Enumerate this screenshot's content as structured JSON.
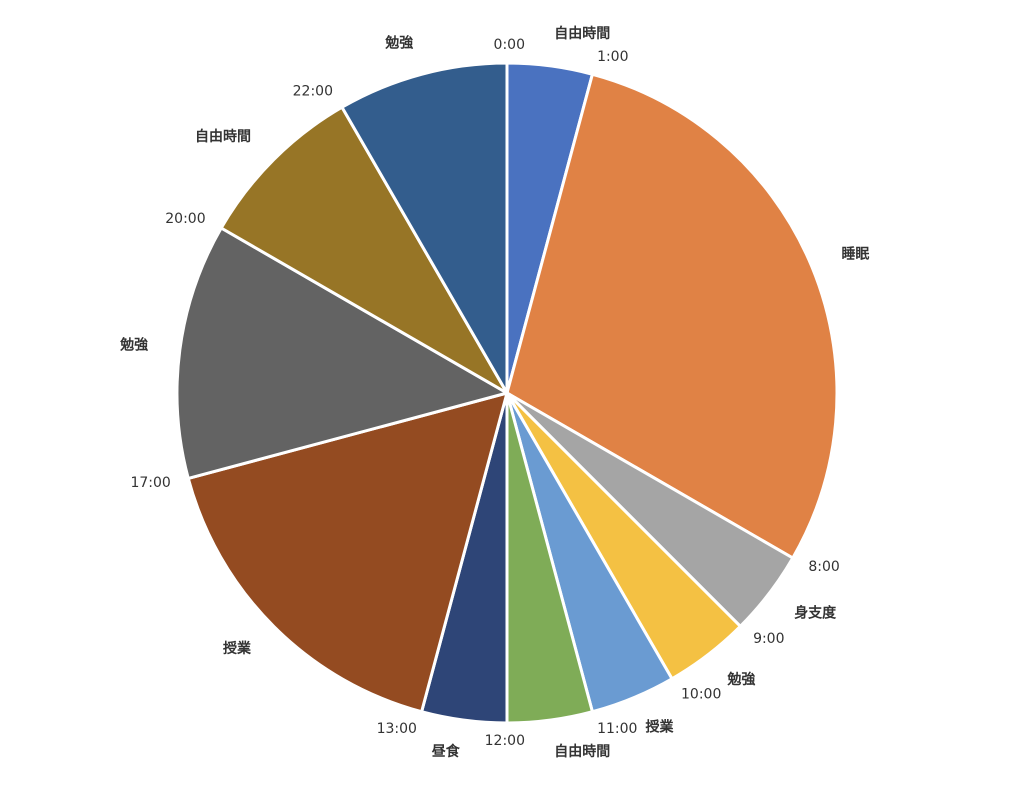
{
  "chart_data": {
    "type": "pie",
    "categories": [
      "自由時間",
      "睡眠",
      "身支度",
      "勉強",
      "授業",
      "自由時間",
      "昼食",
      "授業",
      "勉強",
      "自由時間",
      "勉強"
    ],
    "start_labels": [
      "0:00",
      "1:00",
      "8:00",
      "9:00",
      "10:00",
      "11:00",
      "12:00",
      "13:00",
      "17:00",
      "20:00",
      "22:00"
    ],
    "values": [
      1,
      7,
      1,
      1,
      1,
      1,
      1,
      4,
      3,
      2,
      2
    ],
    "colors": [
      "#4a72c0",
      "#e08245",
      "#a5a5a5",
      "#f4c143",
      "#6a9bd2",
      "#7fac57",
      "#2e4577",
      "#944b21",
      "#636363",
      "#977526",
      "#335d8d"
    ]
  }
}
